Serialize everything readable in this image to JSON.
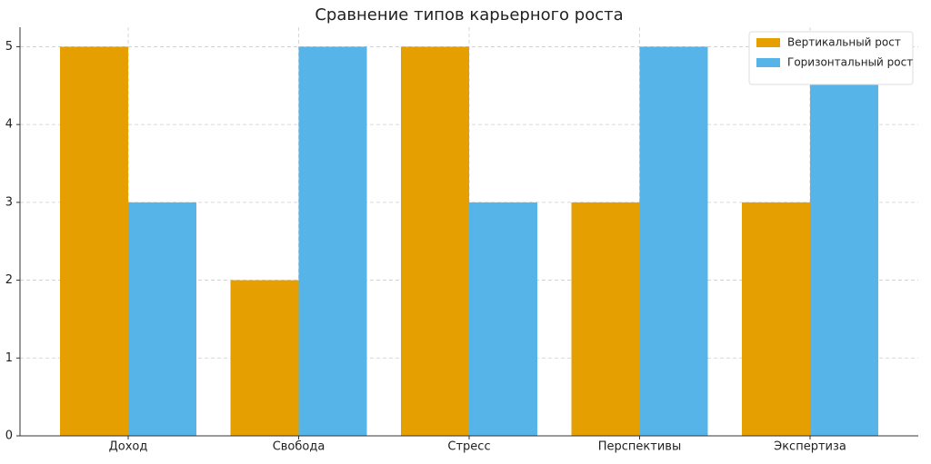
{
  "chart_data": {
    "type": "bar",
    "title": "Сравнение типов карьерного роста",
    "categories": [
      "Доход",
      "Свобода",
      "Стресс",
      "Перспективы",
      "Экспертиза"
    ],
    "series": [
      {
        "name": "Вертикальный рост",
        "color": "#E69F00",
        "values": [
          5,
          2,
          5,
          3,
          3
        ]
      },
      {
        "name": "Горизонтальный рост",
        "color": "#56B4E9",
        "values": [
          3,
          5,
          3,
          5,
          5
        ]
      }
    ],
    "ylim": [
      0,
      5.25
    ],
    "yticks": [
      0,
      1,
      2,
      3,
      4,
      5
    ],
    "grid": true,
    "legend": "upper right"
  }
}
